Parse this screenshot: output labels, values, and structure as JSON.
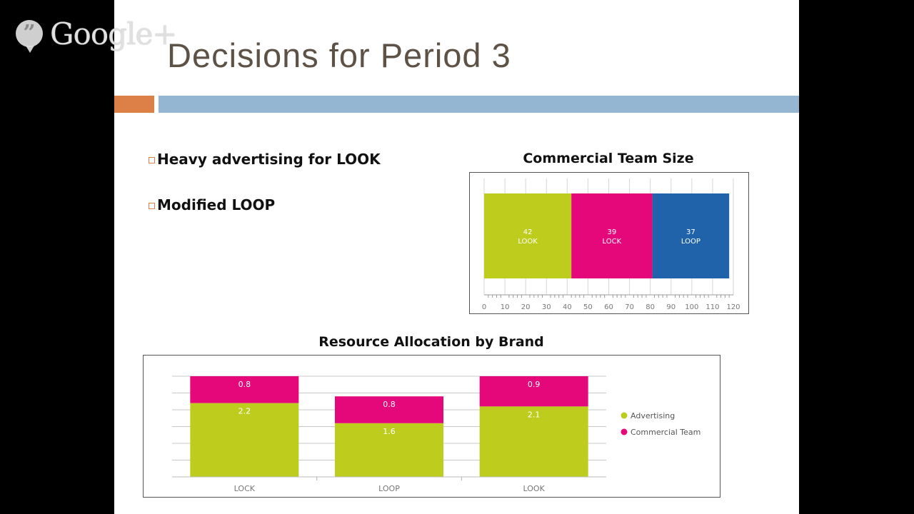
{
  "watermark": {
    "text": "Google+",
    "bubble_glyph": "”"
  },
  "slide": {
    "title": "Decisions for Period 3",
    "bullets": [
      "Heavy advertising for LOOK",
      "Modified LOOP"
    ],
    "accent_colors": {
      "orange": "#dd8047",
      "blue": "#94b6d2",
      "title": "#5e5247"
    }
  },
  "chart_data": [
    {
      "type": "bar",
      "orientation": "horizontal-stacked",
      "title": "Commercial Team Size",
      "xlim": [
        0,
        120
      ],
      "ticks": [
        "0",
        "10",
        "20",
        "30",
        "40",
        "50",
        "60",
        "70",
        "80",
        "90",
        "100",
        "110",
        "120"
      ],
      "grid": true,
      "series": [
        {
          "name": "LOOK",
          "value": 42,
          "color": "#bdcc1d"
        },
        {
          "name": "LOCK",
          "value": 39,
          "color": "#e4087b"
        },
        {
          "name": "LOOP",
          "value": 37,
          "color": "#2163ab"
        }
      ]
    },
    {
      "type": "bar",
      "orientation": "vertical-stacked",
      "title": "Resource Allocation by Brand",
      "categories": [
        "LOCK",
        "LOOP",
        "LOOK"
      ],
      "ylim": [
        0,
        3
      ],
      "grid": true,
      "legend_position": "right",
      "series": [
        {
          "name": "Advertising",
          "color": "#bdcc1d",
          "values": [
            2.2,
            1.6,
            2.1
          ]
        },
        {
          "name": "Commercial Team",
          "color": "#e4087b",
          "values": [
            0.8,
            0.8,
            0.9
          ]
        }
      ]
    }
  ]
}
